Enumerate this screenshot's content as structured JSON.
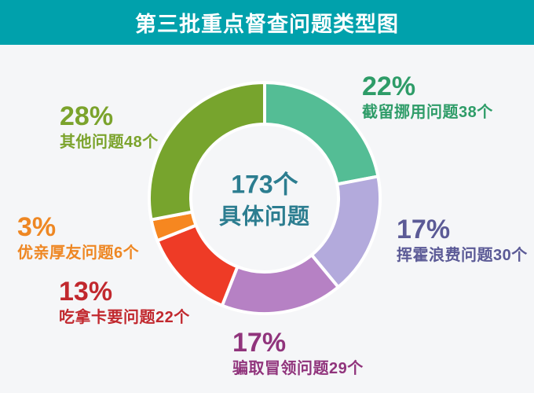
{
  "header": {
    "title": "第三批重点督查问题类型图",
    "background": "#00a1ac",
    "title_color": "#ffffff"
  },
  "center": {
    "value": "173个",
    "label": "具体问题",
    "color": "#2c7d90"
  },
  "chart_data": {
    "type": "pie",
    "subtype": "donut",
    "title": "第三批重点督查问题类型图",
    "total": 173,
    "unit": "个",
    "center_label": "173个 具体问题",
    "start_angle": "12点钟方向顺时针",
    "gap_color": "#ffffff",
    "segments": [
      {
        "name": "截留挪用问题",
        "count": 38,
        "percent": 22,
        "percent_text": "22%",
        "full_text": "截留挪用问题38个",
        "color": "#54bd95",
        "label_color": "#2e9c68"
      },
      {
        "name": "挥霍浪费问题",
        "count": 30,
        "percent": 17,
        "percent_text": "17%",
        "full_text": "挥霍浪费问题30个",
        "color": "#b3aadc",
        "label_color": "#5b5a96"
      },
      {
        "name": "骗取冒领问题",
        "count": 29,
        "percent": 17,
        "percent_text": "17%",
        "full_text": "骗取冒领问题29个",
        "color": "#b681c4",
        "label_color": "#90347c"
      },
      {
        "name": "吃拿卡要问题",
        "count": 22,
        "percent": 13,
        "percent_text": "13%",
        "full_text": "吃拿卡要问题22个",
        "color": "#ee3b26",
        "label_color": "#c1282e"
      },
      {
        "name": "优亲厚友问题",
        "count": 6,
        "percent": 3,
        "percent_text": "3%",
        "full_text": "优亲厚友问题6个",
        "color": "#f68720",
        "label_color": "#ee8723"
      },
      {
        "name": "其他问题",
        "count": 48,
        "percent": 28,
        "percent_text": "28%",
        "full_text": "其他问题48个",
        "color": "#77a42d",
        "label_color": "#7ba32c"
      }
    ]
  }
}
